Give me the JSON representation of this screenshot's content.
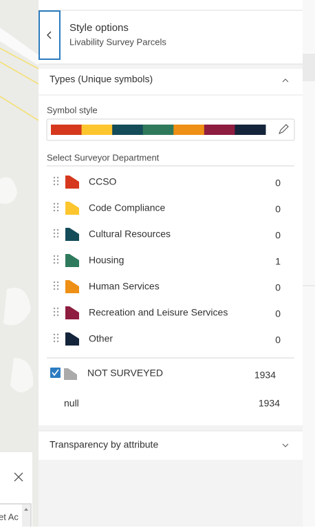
{
  "header": {
    "title": "Style options",
    "subtitle": "Livability Survey Parcels"
  },
  "section": {
    "title": "Types (Unique symbols)",
    "symbol_style_label": "Symbol style",
    "field_label": "Select Surveyor Department"
  },
  "categories": [
    {
      "label": "CCSO",
      "count": 0,
      "color": "#d6381d"
    },
    {
      "label": "Code Compliance",
      "count": 0,
      "color": "#fdc62f"
    },
    {
      "label": "Cultural Resources",
      "count": 0,
      "color": "#144c5a"
    },
    {
      "label": "Housing",
      "count": 1,
      "color": "#2f7a5c"
    },
    {
      "label": "Human Services",
      "count": 0,
      "color": "#ee8f16"
    },
    {
      "label": "Recreation and Leisure Services",
      "count": 0,
      "color": "#8e1d40"
    },
    {
      "label": "Other",
      "count": 0,
      "color": "#14243a"
    }
  ],
  "other": {
    "label": "NOT SURVEYED",
    "count": 1934,
    "color": "#aaaaaa",
    "checked": true
  },
  "null_row": {
    "label": "null",
    "count": 1934
  },
  "transparency": {
    "title": "Transparency by attribute"
  },
  "background_input": {
    "text": "et Ac"
  }
}
